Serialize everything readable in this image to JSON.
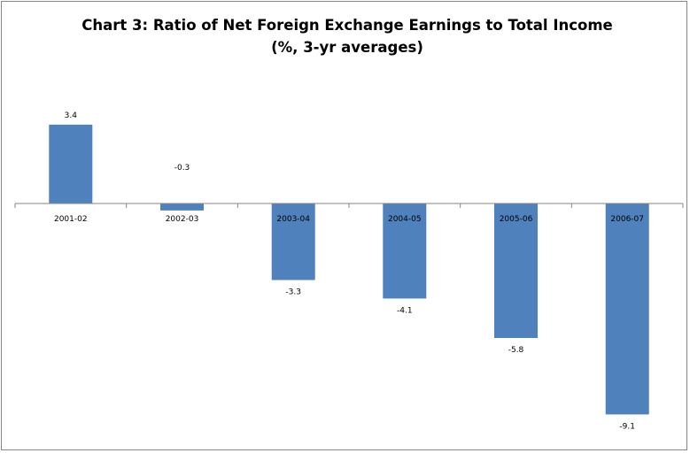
{
  "chart_data": {
    "type": "bar",
    "title": "Chart 3: Ratio of Net Foreign Exchange Earnings to Total Income (%, 3-yr averages)",
    "xlabel": "",
    "ylabel": "",
    "categories": [
      "2001-02",
      "2002-03",
      "2003-04",
      "2004-05",
      "2005-06",
      "2006-07"
    ],
    "values": [
      3.4,
      -0.3,
      -3.3,
      -4.1,
      -5.8,
      -9.1
    ],
    "data_labels": [
      "3.4",
      "-0.3",
      "-3.3",
      "-4.1",
      "-5.8",
      "-9.1"
    ],
    "ylim": [
      -10,
      5
    ],
    "grid": false,
    "legend": "none",
    "colors": {
      "bar": "#4f81bd",
      "axis": "#868686"
    }
  }
}
